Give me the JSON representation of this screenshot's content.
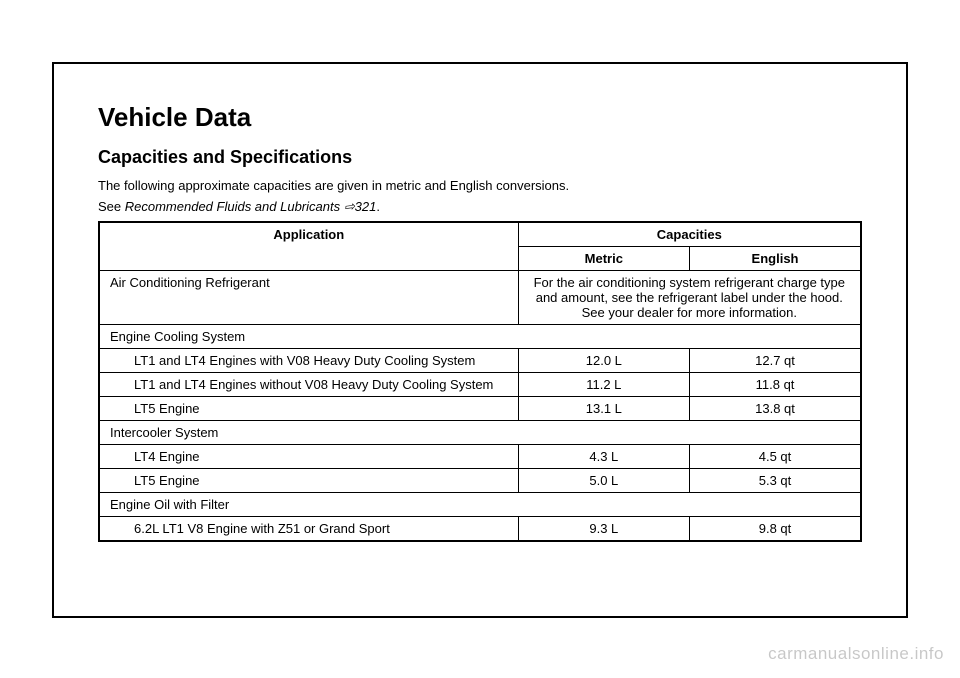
{
  "title": "Vehicle Data",
  "subtitle": "Capacities and Specifications",
  "intro": "The following approximate capacities are given in metric and English conversions.",
  "see_prefix": "See ",
  "see_italic": "Recommended Fluids and Lubricants ",
  "see_page": "321",
  "see_suffix": ".",
  "headers": {
    "application": "Application",
    "capacities": "Capacities",
    "metric": "Metric",
    "english": "English"
  },
  "rows": {
    "ac_label": "Air Conditioning Refrigerant",
    "ac_note": "For the air conditioning system refrigerant charge type and amount, see the refrigerant label under the hood. See your dealer for more information.",
    "ecs_label": "Engine Cooling System",
    "ecs_r1_label": "LT1 and LT4 Engines with V08 Heavy Duty Cooling System",
    "ecs_r1_metric": "12.0 L",
    "ecs_r1_english": "12.7 qt",
    "ecs_r2_label": "LT1 and LT4 Engines without V08 Heavy Duty Cooling System",
    "ecs_r2_metric": "11.2 L",
    "ecs_r2_english": "11.8 qt",
    "ecs_r3_label": "LT5 Engine",
    "ecs_r3_metric": "13.1 L",
    "ecs_r3_english": "13.8 qt",
    "ic_label": "Intercooler System",
    "ic_r1_label": "LT4 Engine",
    "ic_r1_metric": "4.3 L",
    "ic_r1_english": "4.5 qt",
    "ic_r2_label": "LT5 Engine",
    "ic_r2_metric": "5.0 L",
    "ic_r2_english": "5.3 qt",
    "oil_label": "Engine Oil with Filter",
    "oil_r1_label": "6.2L LT1 V8 Engine with Z51 or Grand Sport",
    "oil_r1_metric": "9.3 L",
    "oil_r1_english": "9.8 qt"
  },
  "watermark": "carmanualsonline.info"
}
